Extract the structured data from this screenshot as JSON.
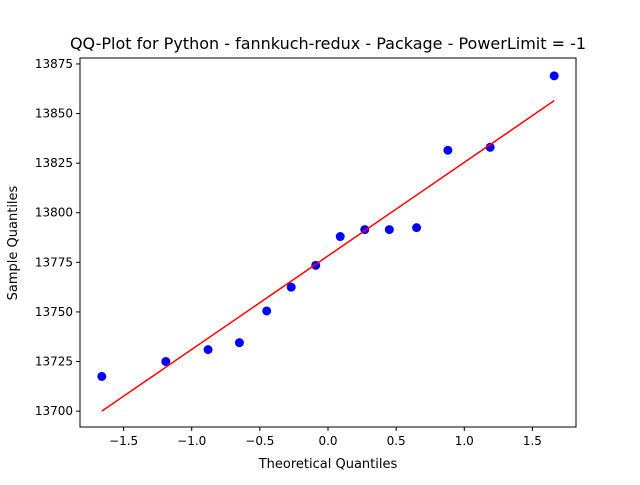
{
  "chart_data": {
    "type": "scatter",
    "title": "QQ-Plot for Python - fannkuch-redux - Package - PowerLimit = -1",
    "xlabel": "Theoretical Quantiles",
    "ylabel": "Sample Quantiles",
    "xlim": [
      -1.82,
      1.82
    ],
    "ylim": [
      13692,
      13878
    ],
    "xticks": [
      -1.5,
      -1.0,
      -0.5,
      0.0,
      0.5,
      1.0,
      1.5
    ],
    "xtick_labels": [
      "−1.5",
      "−1.0",
      "−0.5",
      "0.0",
      "0.5",
      "1.0",
      "1.5"
    ],
    "yticks": [
      13700,
      13725,
      13750,
      13775,
      13800,
      13825,
      13850,
      13875
    ],
    "ytick_labels": [
      "13700",
      "13725",
      "13750",
      "13775",
      "13800",
      "13825",
      "13850",
      "13875"
    ],
    "grid": false,
    "series": [
      {
        "kind": "points",
        "color": "#0000ff",
        "x": [
          -1.66,
          -1.19,
          -0.88,
          -0.65,
          -0.45,
          -0.27,
          -0.09,
          0.09,
          0.27,
          0.45,
          0.65,
          0.88,
          1.19,
          1.66
        ],
        "y": [
          13717.5,
          13725.0,
          13731.0,
          13734.5,
          13750.5,
          13762.5,
          13773.5,
          13788.0,
          13791.5,
          13791.5,
          13792.5,
          13831.5,
          13833.0,
          13869.0
        ]
      },
      {
        "kind": "line",
        "color": "#ff0000",
        "x": [
          -1.66,
          1.66
        ],
        "y": [
          13700.0,
          13856.5
        ]
      }
    ]
  }
}
